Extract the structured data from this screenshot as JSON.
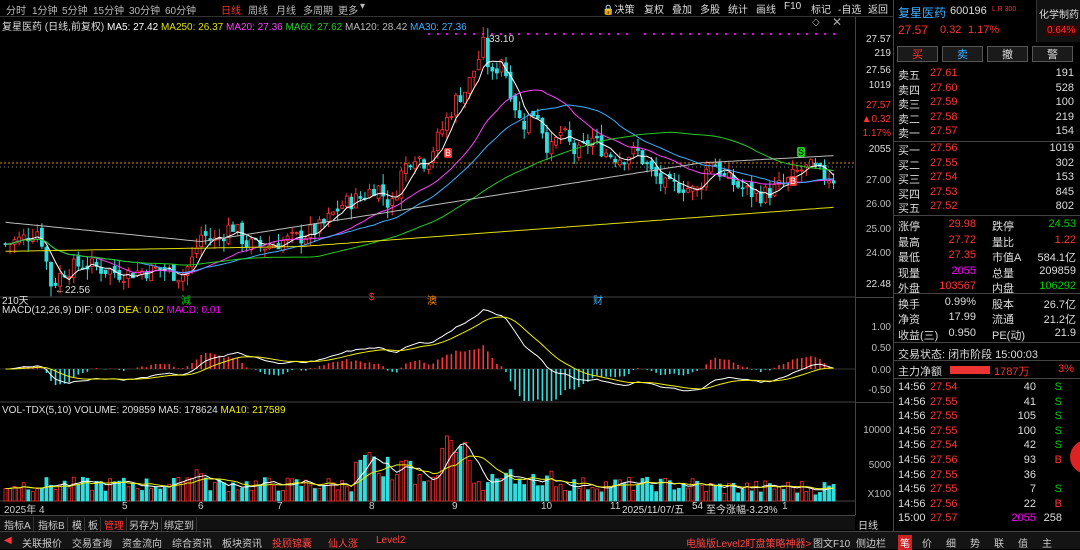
{
  "topbar": {
    "periods": [
      "分时",
      "1分钟",
      "5分钟",
      "15分钟",
      "30分钟",
      "60分钟",
      "日线",
      "周线",
      "月线",
      "多周期",
      "更多"
    ],
    "active": "日线",
    "right": [
      "决策",
      "复权",
      "叠加",
      "多股",
      "统计",
      "画线",
      "F10",
      "标记",
      "-自选",
      "返回"
    ]
  },
  "legend": {
    "title": "复星医药 (日线,前复权)",
    "ma5": "MA5: 27.42",
    "ma250": "MA250: 26.37",
    "ma20": "MA20: 27.36",
    "ma60": "MA60: 27.62",
    "ma120": "MA120: 28.42",
    "ma30": "MA30: 27.36"
  },
  "colors": {
    "ma5": "#ffffff",
    "ma250": "#e0e000",
    "ma20": "#ff40ff",
    "ma60": "#22cc22",
    "ma120": "#bbbbbb",
    "ma30": "#3ab0ff",
    "up": "#ff3333",
    "down": "#33dddd"
  },
  "annotations": {
    "high": "33.10",
    "low": "←22.56",
    "days": "210天",
    "price_axis_last": "22.48",
    "right_price": "27.57",
    "right_vol": "219",
    "right_price2": "27.56",
    "right_vol2": "1019",
    "red_price": "27.57",
    "red_chg": "▲0.32",
    "red_pct": "1.17%",
    "gray_vol": "2055",
    "b": "B",
    "s": "S",
    "events": [
      "減",
      "$",
      "澳",
      "财"
    ]
  },
  "price_axis": [
    "27.00",
    "26.00",
    "25.00",
    "24.00"
  ],
  "macd": {
    "label": "MACD(12,26,9)",
    "dif": "DIF: 0.03",
    "dea": "DEA: 0.02",
    "macd": "MACD: 0.01",
    "axis": [
      "1.00",
      "0.50",
      "0.00",
      "-0.50"
    ]
  },
  "vol": {
    "label": "VOL-TDX(5,10)",
    "volume": "VOLUME: 209859",
    "ma5": "MA5: 178624",
    "ma10": "MA10: 217589",
    "axis": [
      "10000",
      "5000"
    ],
    "unit": "X100"
  },
  "xaxis": [
    "2025年 4",
    "5",
    "6",
    "7",
    "8",
    "9",
    "10",
    "11",
    "2025/11/07/五",
    "54",
    "至今涨幅-3.23%",
    "1"
  ],
  "bottom_tabs": [
    "指标A",
    "指标B",
    "模",
    "板",
    "管理",
    "另存为",
    "绑定到"
  ],
  "bottom_right_tab": "日线",
  "bottom_bar": {
    "items": [
      "关联报价",
      "交易查询",
      "资金流向",
      "综合资讯",
      "板块资讯",
      "投顾锦囊",
      "仙人涨",
      "Level2"
    ],
    "right": "电脑版Level2盯盘策略神器>",
    "right2": [
      "图文F10",
      "侧边栏"
    ]
  },
  "quote": {
    "name": "复星医药",
    "code": "600196",
    "lr": "L R 300",
    "sector": "化学制药",
    "price": "27.57",
    "chg": "0.32",
    "pct": "1.17%",
    "sector_pct": "0.64%",
    "buttons": [
      "买",
      "卖",
      "撤",
      "警"
    ],
    "asks": [
      [
        "卖五",
        "27.61",
        "191"
      ],
      [
        "卖四",
        "27.60",
        "528"
      ],
      [
        "卖三",
        "27.59",
        "100"
      ],
      [
        "卖二",
        "27.58",
        "219"
      ],
      [
        "卖一",
        "27.57",
        "154"
      ]
    ],
    "bids": [
      [
        "买一",
        "27.56",
        "1019"
      ],
      [
        "买二",
        "27.55",
        "302"
      ],
      [
        "买三",
        "27.54",
        "153"
      ],
      [
        "买四",
        "27.53",
        "845"
      ],
      [
        "买五",
        "27.52",
        "802"
      ]
    ],
    "stats": [
      [
        "涨停",
        "29.98",
        "跌停",
        "24.53"
      ],
      [
        "最高",
        "27.72",
        "量比",
        "1.22"
      ],
      [
        "最低",
        "27.35",
        "市值A",
        "584.1亿"
      ],
      [
        "现量",
        "2055",
        "总量",
        "209859"
      ],
      [
        "外盘",
        "103567",
        "内盘",
        "106292"
      ],
      [
        "换手",
        "0.99%",
        "股本",
        "26.7亿"
      ],
      [
        "净资",
        "17.99",
        "流通",
        "21.2亿"
      ],
      [
        "收益(三)",
        "0.950",
        "PE(动)",
        "21.9"
      ]
    ],
    "status": "交易状态: 闭市阶段 15:00:03",
    "mainflow": [
      "主力净额",
      "1787万",
      "3%"
    ],
    "ticks": [
      [
        "14:56",
        "27.54",
        "40",
        "S"
      ],
      [
        "14:56",
        "27.55",
        "41",
        "S"
      ],
      [
        "14:56",
        "27.55",
        "105",
        "S"
      ],
      [
        "14:56",
        "27.55",
        "100",
        "S"
      ],
      [
        "14:56",
        "27.54",
        "42",
        "S"
      ],
      [
        "14:56",
        "27.56",
        "93",
        "B"
      ],
      [
        "14:56",
        "27.55",
        "36",
        ""
      ],
      [
        "14:56",
        "27.55",
        "7",
        "S"
      ],
      [
        "14:56",
        "27.56",
        "22",
        "B"
      ],
      [
        "15:00",
        "27.57",
        "2055",
        "258"
      ]
    ],
    "side_icons": [
      "笔",
      "价",
      "细",
      "势",
      "联",
      "值",
      "主"
    ]
  }
}
